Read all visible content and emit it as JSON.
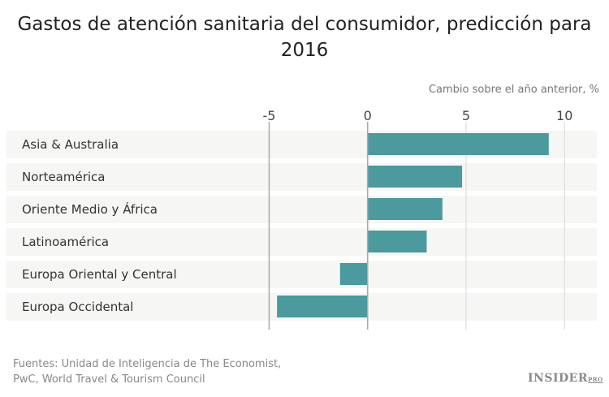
{
  "chart_data": {
    "type": "bar",
    "orientation": "horizontal",
    "title": "Gastos de atención sanitaria del consumidor, predicción para 2016",
    "xlabel": "Cambio sobre el año anterior, %",
    "categories": [
      "Asia & Australia",
      "Norteamérica",
      "Oriente Medio y África",
      "Latinoamérica",
      "Europa Oriental y Central",
      "Europa Occidental"
    ],
    "values": [
      9.2,
      4.8,
      3.8,
      3.0,
      -1.4,
      -4.6
    ],
    "xlim": [
      -5,
      10
    ],
    "xticks": [
      "-5",
      "0",
      "5",
      "10"
    ],
    "grid": true,
    "bar_color": "#4a9a9e"
  },
  "source": [
    "Fuentes: Unidad de Inteligencia de The Economist,",
    "PwC, World Travel & Tourism Council"
  ],
  "logo": {
    "main": "INSIDER",
    "sub": "PRO"
  }
}
